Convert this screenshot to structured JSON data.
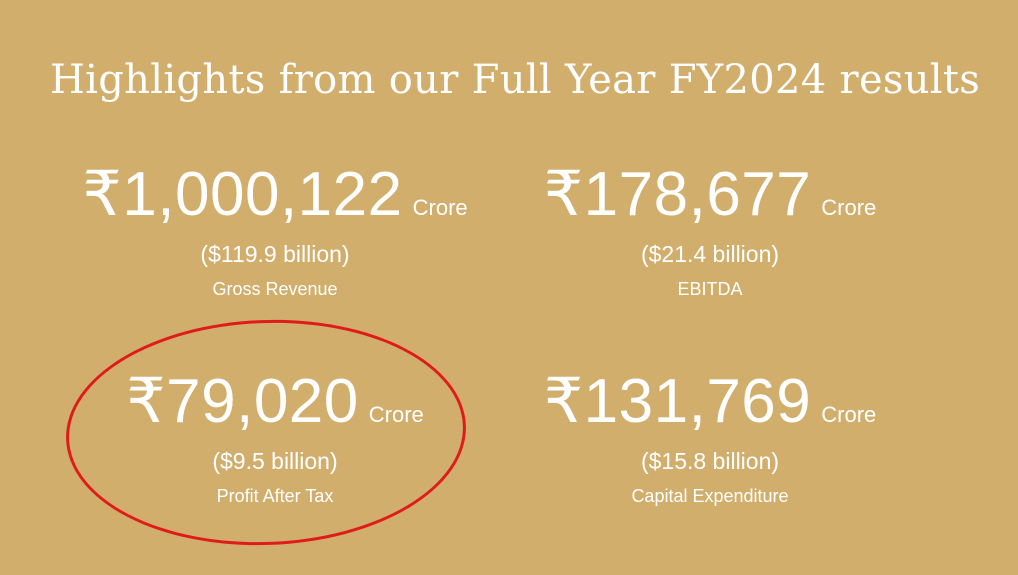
{
  "headline": "Highlights from our Full Year FY2024 results",
  "stats": [
    {
      "amount": "₹1,000,122",
      "unit": "Crore",
      "usd": "($119.9 billion)",
      "label": "Gross Revenue"
    },
    {
      "amount": "₹178,677",
      "unit": "Crore",
      "usd": "($21.4 billion)",
      "label": "EBITDA"
    },
    {
      "amount": "₹79,020",
      "unit": "Crore",
      "usd": "($9.5 billion)",
      "label": "Profit After Tax"
    },
    {
      "amount": "₹131,769",
      "unit": "Crore",
      "usd": "($15.8 billion)",
      "label": "Capital Expenditure"
    }
  ],
  "colors": {
    "background": "#d1ae6c",
    "text": "#ffffff",
    "annotation": "#e01b1b"
  }
}
